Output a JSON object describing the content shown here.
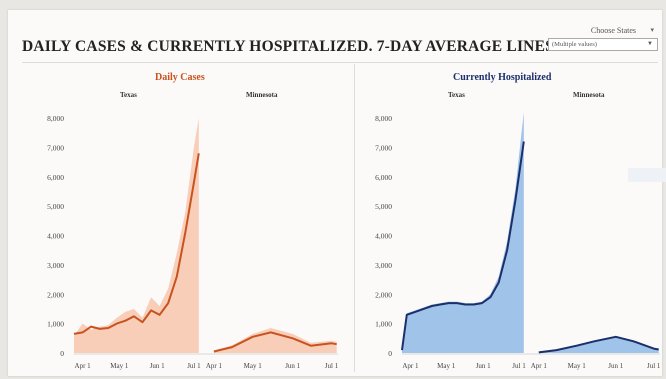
{
  "title": "DAILY CASES & CURRENTLY HOSPITALIZED. 7-DAY AVERAGE LINES",
  "filter": {
    "label": "Choose States",
    "value": "(Multiple values)"
  },
  "colors": {
    "cases_fill": "#f7c6ae",
    "cases_line": "#c9531f",
    "cases_title": "#c9531f",
    "hosp_fill": "#8fb8e6",
    "hosp_line": "#1b2f6b",
    "hosp_title": "#1b2f6b"
  },
  "chart_data": [
    {
      "type": "area",
      "title": "Daily Cases",
      "ylim": [
        0,
        8000
      ],
      "yticks": [
        "0",
        "1,000",
        "2,000",
        "3,000",
        "4,000",
        "5,000",
        "6,000",
        "7,000",
        "8,000"
      ],
      "xticks": [
        "Apr 1",
        "May 1",
        "Jun 1",
        "Jul 1"
      ],
      "panels": [
        {
          "name": "Texas",
          "x": [
            "Mar 25",
            "Apr 1",
            "Apr 8",
            "Apr 15",
            "Apr 22",
            "Apr 29",
            "May 6",
            "May 13",
            "May 20",
            "May 27",
            "Jun 3",
            "Jun 10",
            "Jun 17",
            "Jun 24",
            "Jul 1",
            "Jul 5"
          ],
          "avg": [
            650,
            700,
            900,
            820,
            850,
            1000,
            1100,
            1250,
            1050,
            1450,
            1300,
            1700,
            2600,
            4100,
            5800,
            6800
          ],
          "daily": [
            600,
            1000,
            800,
            900,
            950,
            1200,
            1400,
            1500,
            1200,
            1900,
            1600,
            2200,
            3400,
            4800,
            7000,
            8000
          ]
        },
        {
          "name": "Minnesota",
          "x": [
            "Apr 1",
            "Apr 15",
            "May 1",
            "May 15",
            "Jun 1",
            "Jun 15",
            "Jul 1",
            "Jul 5"
          ],
          "avg": [
            50,
            200,
            550,
            700,
            500,
            250,
            330,
            300
          ],
          "daily": [
            80,
            260,
            650,
            850,
            650,
            350,
            420,
            380
          ]
        }
      ]
    },
    {
      "type": "area",
      "title": "Currently Hospitalized",
      "ylim": [
        0,
        8000
      ],
      "yticks": [
        "0",
        "1,000",
        "2,000",
        "3,000",
        "4,000",
        "5,000",
        "6,000",
        "7,000",
        "8,000"
      ],
      "xticks": [
        "Apr 1",
        "May 1",
        "Jun 1",
        "Jul 1"
      ],
      "panels": [
        {
          "name": "Texas",
          "x": [
            "Mar 25",
            "Mar 29",
            "Apr 5",
            "Apr 12",
            "Apr 19",
            "Apr 26",
            "May 3",
            "May 10",
            "May 17",
            "May 24",
            "May 31",
            "Jun 7",
            "Jun 14",
            "Jun 21",
            "Jun 28",
            "Jul 5"
          ],
          "avg": [
            100,
            1300,
            1400,
            1500,
            1600,
            1650,
            1700,
            1700,
            1650,
            1650,
            1700,
            1900,
            2400,
            3500,
            5200,
            7200
          ],
          "daily": [
            150,
            1350,
            1450,
            1550,
            1650,
            1700,
            1750,
            1750,
            1700,
            1700,
            1750,
            2000,
            2600,
            3800,
            5600,
            8200
          ]
        },
        {
          "name": "Minnesota",
          "x": [
            "Apr 1",
            "Apr 15",
            "May 1",
            "May 15",
            "Jun 1",
            "Jun 15",
            "Jul 1",
            "Jul 5"
          ],
          "avg": [
            20,
            100,
            250,
            400,
            550,
            400,
            150,
            120
          ],
          "daily": [
            30,
            120,
            280,
            430,
            580,
            430,
            170,
            140
          ]
        }
      ]
    }
  ]
}
